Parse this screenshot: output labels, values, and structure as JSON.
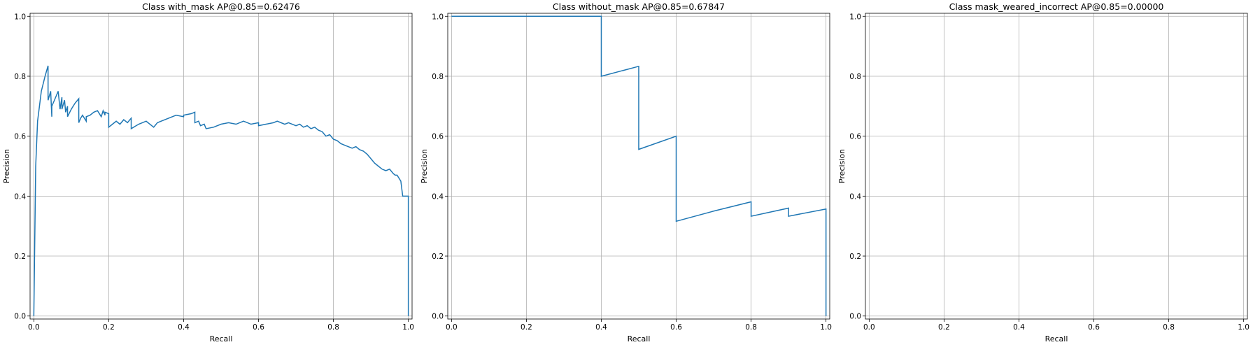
{
  "chart_data": [
    {
      "type": "line",
      "title": "Class with_mask AP@0.85=0.62476",
      "xlabel": "Recall",
      "ylabel": "Precision",
      "xlim": [
        0,
        1
      ],
      "ylim": [
        0,
        1
      ],
      "xticks": [
        "0.0",
        "0.2",
        "0.4",
        "0.6",
        "0.8",
        "1.0"
      ],
      "yticks": [
        "0.0",
        "0.2",
        "0.4",
        "0.6",
        "0.8",
        "1.0"
      ],
      "grid": true,
      "color": "#1f77b4",
      "series": [
        {
          "x": [
            0.0,
            0.005,
            0.01,
            0.02,
            0.03,
            0.038,
            0.038,
            0.045,
            0.048,
            0.048,
            0.055,
            0.065,
            0.07,
            0.075,
            0.075,
            0.082,
            0.085,
            0.09,
            0.09,
            0.1,
            0.11,
            0.12,
            0.12,
            0.125,
            0.13,
            0.14,
            0.14,
            0.15,
            0.16,
            0.17,
            0.18,
            0.185,
            0.19,
            0.19,
            0.2,
            0.2,
            0.21,
            0.22,
            0.23,
            0.24,
            0.25,
            0.26,
            0.26,
            0.28,
            0.3,
            0.32,
            0.33,
            0.34,
            0.36,
            0.38,
            0.4,
            0.4,
            0.42,
            0.43,
            0.43,
            0.44,
            0.445,
            0.455,
            0.46,
            0.48,
            0.5,
            0.52,
            0.54,
            0.56,
            0.58,
            0.6,
            0.6,
            0.62,
            0.64,
            0.65,
            0.66,
            0.67,
            0.68,
            0.7,
            0.71,
            0.72,
            0.73,
            0.74,
            0.75,
            0.76,
            0.77,
            0.78,
            0.79,
            0.8,
            0.81,
            0.82,
            0.83,
            0.84,
            0.85,
            0.86,
            0.87,
            0.88,
            0.89,
            0.9,
            0.91,
            0.92,
            0.93,
            0.94,
            0.95,
            0.96,
            0.965,
            0.97,
            0.975,
            0.98,
            0.985,
            0.99,
            0.995,
            1.0,
            1.0
          ],
          "y": [
            0.0,
            0.5,
            0.65,
            0.75,
            0.8,
            0.835,
            0.72,
            0.75,
            0.665,
            0.7,
            0.72,
            0.75,
            0.69,
            0.73,
            0.69,
            0.72,
            0.68,
            0.7,
            0.665,
            0.69,
            0.71,
            0.725,
            0.645,
            0.66,
            0.67,
            0.65,
            0.665,
            0.67,
            0.68,
            0.685,
            0.665,
            0.685,
            0.67,
            0.68,
            0.675,
            0.63,
            0.64,
            0.65,
            0.64,
            0.655,
            0.645,
            0.66,
            0.625,
            0.64,
            0.65,
            0.63,
            0.645,
            0.65,
            0.66,
            0.67,
            0.665,
            0.67,
            0.675,
            0.68,
            0.645,
            0.65,
            0.635,
            0.64,
            0.625,
            0.63,
            0.64,
            0.645,
            0.64,
            0.65,
            0.64,
            0.645,
            0.635,
            0.64,
            0.645,
            0.65,
            0.645,
            0.64,
            0.645,
            0.635,
            0.64,
            0.63,
            0.635,
            0.625,
            0.63,
            0.62,
            0.615,
            0.6,
            0.605,
            0.59,
            0.585,
            0.575,
            0.57,
            0.565,
            0.56,
            0.565,
            0.555,
            0.55,
            0.54,
            0.525,
            0.51,
            0.5,
            0.49,
            0.485,
            0.49,
            0.475,
            0.47,
            0.47,
            0.46,
            0.45,
            0.4,
            0.4,
            0.4,
            0.4,
            0.0
          ]
        }
      ]
    },
    {
      "type": "line",
      "title": "Class without_mask AP@0.85=0.67847",
      "xlabel": "Recall",
      "ylabel": "Precision",
      "xlim": [
        0,
        1
      ],
      "ylim": [
        0,
        1
      ],
      "xticks": [
        "0.0",
        "0.2",
        "0.4",
        "0.6",
        "0.8",
        "1.0"
      ],
      "yticks": [
        "0.0",
        "0.2",
        "0.4",
        "0.6",
        "0.8",
        "1.0"
      ],
      "grid": true,
      "color": "#1f77b4",
      "series": [
        {
          "x": [
            0.0,
            0.4,
            0.4,
            0.5,
            0.5,
            0.6,
            0.6,
            0.7,
            0.8,
            0.8,
            0.9,
            0.9,
            1.0,
            1.0
          ],
          "y": [
            1.0,
            1.0,
            0.8,
            0.833,
            0.556,
            0.6,
            0.316,
            0.35,
            0.381,
            0.333,
            0.36,
            0.333,
            0.357,
            0.0
          ]
        }
      ]
    },
    {
      "type": "line",
      "title": "Class mask_weared_incorrect AP@0.85=0.00000",
      "xlabel": "Recall",
      "ylabel": "Precision",
      "xlim": [
        0,
        1
      ],
      "ylim": [
        0,
        1
      ],
      "xticks": [
        "0.0",
        "0.2",
        "0.4",
        "0.6",
        "0.8",
        "1.0"
      ],
      "yticks": [
        "0.0",
        "0.2",
        "0.4",
        "0.6",
        "0.8",
        "1.0"
      ],
      "grid": true,
      "color": "#1f77b4",
      "series": []
    }
  ]
}
